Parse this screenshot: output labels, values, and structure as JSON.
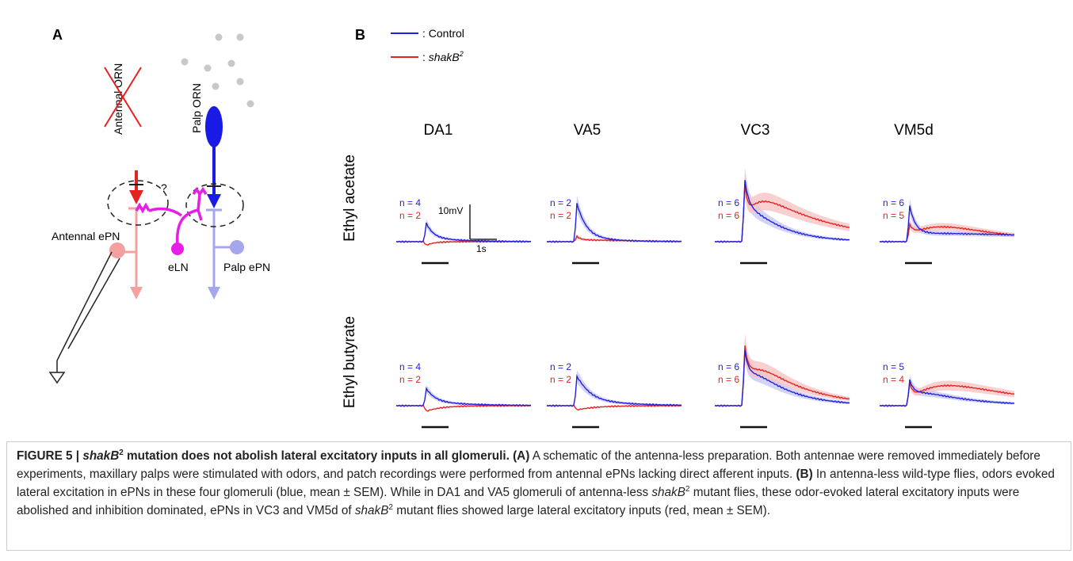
{
  "panel_a": {
    "label": "A",
    "antennal_orn": "Antennal ORN",
    "palp_orn": "Palp ORN",
    "question": "?",
    "antennal_epn": "Antennal ePN",
    "eln": "eLN",
    "palp_epn": "Palp ePN"
  },
  "panel_b": {
    "label": "B",
    "legend": {
      "control": ": Control",
      "mutant_prefix": ": ",
      "mutant_name": "shakB",
      "mutant_sup": "2"
    },
    "columns": [
      "DA1",
      "VA5",
      "VC3",
      "VM5d"
    ],
    "rows": [
      "Ethyl acetate",
      "Ethyl butyrate"
    ],
    "scale": {
      "voltage": "10mV",
      "time": "1s"
    },
    "n_labels": [
      [
        {
          "control": "n = 4",
          "mutant": "n = 2"
        },
        {
          "control": "n = 2",
          "mutant": "n = 2"
        },
        {
          "control": "n = 6",
          "mutant": "n = 6"
        },
        {
          "control": "n = 6",
          "mutant": "n = 5"
        }
      ],
      [
        {
          "control": "n = 4",
          "mutant": "n = 2"
        },
        {
          "control": "n = 2",
          "mutant": "n = 2"
        },
        {
          "control": "n = 6",
          "mutant": "n = 6"
        },
        {
          "control": "n = 5",
          "mutant": "n = 4"
        }
      ]
    ]
  },
  "caption": {
    "runs": [
      "FIGURE 5 | ",
      "shakB",
      "2",
      " mutation does not abolish lateral excitatory inputs in all glomeruli. (A)",
      " A schematic of the antenna-less preparation. Both antennae were removed immediately before experiments, maxillary palps were stimulated with odors, and patch recordings were performed from antennal ePNs lacking direct afferent inputs. ",
      "(B)",
      " In antenna-less wild-type flies, odors evoked lateral excitation in ePNs in these four glomeruli (blue, mean ± SEM). While in DA1 and VA5 glomeruli of antenna-less ",
      "shakB",
      "2",
      " mutant flies, these odor-evoked lateral excitatory inputs were abolished and inhibition dominated, ePNs in VC3 and VM5d of ",
      "shakB",
      "2",
      " mutant flies showed large lateral excitatory inputs (red, mean ± SEM)."
    ]
  }
}
